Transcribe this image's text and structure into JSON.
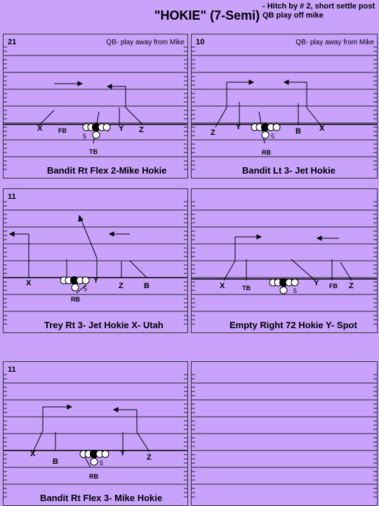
{
  "title": "\"HOKIE\" (7-Semi)",
  "note_line1": "- Hitch by # 2, short settle post",
  "note_line2": "QB play off mike",
  "panels": [
    {
      "num": "21",
      "qb_note": "QB- play away from Mike",
      "caption": "Bandit Rt Flex 2-Mike Hokie",
      "labels": {
        "x": "X",
        "fb": "FB",
        "five": "5",
        "y": "Y",
        "z": "Z",
        "tb": "TB"
      }
    },
    {
      "num": "10",
      "qb_note": "QB- play away from Mike",
      "caption": "Bandit Lt 3- Jet Hokie",
      "labels": {
        "z": "Z",
        "y": "Y",
        "five": "5",
        "b": "B",
        "x": "X",
        "rb": "RB"
      }
    },
    {
      "num": "11",
      "qb_note": "",
      "caption": "Trey Rt 3- Jet Hokie X- Utah",
      "labels": {
        "x": "X",
        "five": "5",
        "y": "Y",
        "z": "Z",
        "b": "B",
        "rb": "RB"
      }
    },
    {
      "num": "",
      "qb_note": "",
      "caption": "Empty Right 72 Hokie Y- Spot",
      "labels": {
        "x": "X",
        "tb": "TB",
        "five": "5",
        "y": "Y",
        "fb": "FB",
        "z": "Z"
      }
    },
    {
      "num": "11",
      "qb_note": "",
      "caption": "Bandit Rt Flex 3- Mike Hokie",
      "labels": {
        "x": "X",
        "b": "B",
        "five": "5",
        "y": "Y",
        "z": "Z",
        "rb": "RB"
      }
    },
    {
      "num": "",
      "qb_note": "",
      "caption": "",
      "labels": {}
    }
  ]
}
